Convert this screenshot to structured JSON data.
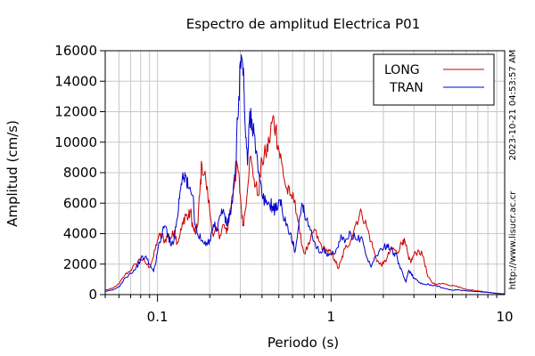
{
  "chart_data": {
    "type": "line",
    "title": "Espectro de amplitud Electrica P01",
    "xlabel": "Periodo (s)",
    "ylabel": "Amplitud (cm/s)",
    "x_scale": "log",
    "xlim": [
      0.05,
      10
    ],
    "ylim": [
      0,
      16000
    ],
    "x_ticks": [
      {
        "value": 0.1,
        "label": "0.1"
      },
      {
        "value": 1,
        "label": "1"
      },
      {
        "value": 10,
        "label": "10"
      }
    ],
    "y_ticks": [
      {
        "value": 0,
        "label": "0"
      },
      {
        "value": 2000,
        "label": "2000"
      },
      {
        "value": 4000,
        "label": "4000"
      },
      {
        "value": 6000,
        "label": "6000"
      },
      {
        "value": 8000,
        "label": "8000"
      },
      {
        "value": 10000,
        "label": "10000"
      },
      {
        "value": 12000,
        "label": "12000"
      },
      {
        "value": 14000,
        "label": "14000"
      },
      {
        "value": 16000,
        "label": "16000"
      }
    ],
    "grid": true,
    "legend_position": "top-right",
    "series": [
      {
        "name": "LONG",
        "color": "#cc0000",
        "points": [
          [
            0.05,
            300
          ],
          [
            0.055,
            400
          ],
          [
            0.06,
            700
          ],
          [
            0.065,
            1300
          ],
          [
            0.07,
            1600
          ],
          [
            0.075,
            2000
          ],
          [
            0.08,
            2400
          ],
          [
            0.085,
            2100
          ],
          [
            0.09,
            1800
          ],
          [
            0.095,
            2500
          ],
          [
            0.1,
            3600
          ],
          [
            0.105,
            4000
          ],
          [
            0.11,
            3500
          ],
          [
            0.115,
            3900
          ],
          [
            0.12,
            3700
          ],
          [
            0.125,
            4200
          ],
          [
            0.13,
            3400
          ],
          [
            0.135,
            4000
          ],
          [
            0.14,
            4600
          ],
          [
            0.145,
            5300
          ],
          [
            0.15,
            5000
          ],
          [
            0.155,
            5500
          ],
          [
            0.16,
            4400
          ],
          [
            0.165,
            4000
          ],
          [
            0.17,
            4500
          ],
          [
            0.175,
            6500
          ],
          [
            0.18,
            8600
          ],
          [
            0.19,
            7500
          ],
          [
            0.2,
            5500
          ],
          [
            0.21,
            3800
          ],
          [
            0.22,
            4200
          ],
          [
            0.23,
            3900
          ],
          [
            0.24,
            4600
          ],
          [
            0.25,
            4000
          ],
          [
            0.26,
            5200
          ],
          [
            0.27,
            6500
          ],
          [
            0.28,
            7800
          ],
          [
            0.29,
            8400
          ],
          [
            0.3,
            6500
          ],
          [
            0.31,
            4500
          ],
          [
            0.32,
            5500
          ],
          [
            0.34,
            9000
          ],
          [
            0.36,
            7600
          ],
          [
            0.38,
            6500
          ],
          [
            0.4,
            8800
          ],
          [
            0.42,
            9200
          ],
          [
            0.44,
            10000
          ],
          [
            0.46,
            11500
          ],
          [
            0.48,
            11000
          ],
          [
            0.5,
            9500
          ],
          [
            0.52,
            8600
          ],
          [
            0.55,
            7000
          ],
          [
            0.58,
            6500
          ],
          [
            0.62,
            6200
          ],
          [
            0.66,
            4000
          ],
          [
            0.7,
            2700
          ],
          [
            0.75,
            3300
          ],
          [
            0.8,
            4300
          ],
          [
            0.85,
            3500
          ],
          [
            0.9,
            3000
          ],
          [
            0.95,
            2900
          ],
          [
            1.0,
            2700
          ],
          [
            1.05,
            2300
          ],
          [
            1.1,
            1700
          ],
          [
            1.15,
            2300
          ],
          [
            1.2,
            3000
          ],
          [
            1.3,
            3600
          ],
          [
            1.4,
            4800
          ],
          [
            1.5,
            5400
          ],
          [
            1.6,
            4500
          ],
          [
            1.7,
            3500
          ],
          [
            1.8,
            2500
          ],
          [
            1.9,
            2000
          ],
          [
            2.0,
            2000
          ],
          [
            2.1,
            2400
          ],
          [
            2.2,
            2900
          ],
          [
            2.3,
            3000
          ],
          [
            2.4,
            2700
          ],
          [
            2.5,
            3200
          ],
          [
            2.6,
            3600
          ],
          [
            2.7,
            3200
          ],
          [
            2.8,
            2300
          ],
          [
            2.9,
            2200
          ],
          [
            3.0,
            2600
          ],
          [
            3.2,
            2900
          ],
          [
            3.4,
            2500
          ],
          [
            3.6,
            1200
          ],
          [
            3.8,
            800
          ],
          [
            4.0,
            700
          ],
          [
            4.5,
            700
          ],
          [
            5.0,
            600
          ],
          [
            5.5,
            500
          ],
          [
            6.0,
            350
          ],
          [
            7.0,
            250
          ],
          [
            8.0,
            150
          ],
          [
            9.0,
            80
          ],
          [
            10.0,
            40
          ]
        ]
      },
      {
        "name": "TRAN",
        "color": "#0000cc",
        "points": [
          [
            0.05,
            200
          ],
          [
            0.055,
            300
          ],
          [
            0.06,
            500
          ],
          [
            0.065,
            1100
          ],
          [
            0.07,
            1400
          ],
          [
            0.075,
            1700
          ],
          [
            0.08,
            2300
          ],
          [
            0.085,
            2500
          ],
          [
            0.09,
            2000
          ],
          [
            0.095,
            1500
          ],
          [
            0.1,
            2800
          ],
          [
            0.105,
            3800
          ],
          [
            0.11,
            4500
          ],
          [
            0.115,
            4000
          ],
          [
            0.12,
            3200
          ],
          [
            0.125,
            3800
          ],
          [
            0.13,
            5000
          ],
          [
            0.135,
            6800
          ],
          [
            0.14,
            8000
          ],
          [
            0.145,
            7800
          ],
          [
            0.15,
            7000
          ],
          [
            0.16,
            6500
          ],
          [
            0.165,
            4500
          ],
          [
            0.17,
            4000
          ],
          [
            0.18,
            3500
          ],
          [
            0.19,
            3200
          ],
          [
            0.2,
            3600
          ],
          [
            0.21,
            4600
          ],
          [
            0.22,
            4300
          ],
          [
            0.23,
            5200
          ],
          [
            0.24,
            5600
          ],
          [
            0.25,
            4500
          ],
          [
            0.26,
            5200
          ],
          [
            0.27,
            6000
          ],
          [
            0.28,
            7800
          ],
          [
            0.29,
            11500
          ],
          [
            0.3,
            15300
          ],
          [
            0.31,
            15000
          ],
          [
            0.315,
            13500
          ],
          [
            0.32,
            11000
          ],
          [
            0.33,
            8500
          ],
          [
            0.34,
            12000
          ],
          [
            0.35,
            11500
          ],
          [
            0.36,
            10600
          ],
          [
            0.38,
            8000
          ],
          [
            0.4,
            6500
          ],
          [
            0.42,
            6000
          ],
          [
            0.44,
            6000
          ],
          [
            0.46,
            5800
          ],
          [
            0.48,
            5500
          ],
          [
            0.5,
            6200
          ],
          [
            0.52,
            5800
          ],
          [
            0.55,
            4500
          ],
          [
            0.58,
            4000
          ],
          [
            0.6,
            3500
          ],
          [
            0.62,
            2800
          ],
          [
            0.65,
            4500
          ],
          [
            0.68,
            6000
          ],
          [
            0.7,
            5500
          ],
          [
            0.75,
            4500
          ],
          [
            0.8,
            3500
          ],
          [
            0.85,
            2800
          ],
          [
            0.9,
            3000
          ],
          [
            0.95,
            2500
          ],
          [
            1.0,
            2600
          ],
          [
            1.05,
            2700
          ],
          [
            1.1,
            3100
          ],
          [
            1.15,
            3800
          ],
          [
            1.2,
            3400
          ],
          [
            1.3,
            4000
          ],
          [
            1.4,
            3600
          ],
          [
            1.5,
            3800
          ],
          [
            1.6,
            2500
          ],
          [
            1.7,
            1800
          ],
          [
            1.8,
            2500
          ],
          [
            1.9,
            2900
          ],
          [
            2.0,
            3000
          ],
          [
            2.1,
            3300
          ],
          [
            2.2,
            3000
          ],
          [
            2.3,
            2700
          ],
          [
            2.4,
            2500
          ],
          [
            2.5,
            1700
          ],
          [
            2.6,
            1300
          ],
          [
            2.7,
            800
          ],
          [
            2.8,
            1600
          ],
          [
            2.9,
            1400
          ],
          [
            3.0,
            1100
          ],
          [
            3.2,
            800
          ],
          [
            3.4,
            700
          ],
          [
            3.6,
            700
          ],
          [
            3.8,
            600
          ],
          [
            4.0,
            600
          ],
          [
            4.5,
            400
          ],
          [
            5.0,
            300
          ],
          [
            5.5,
            300
          ],
          [
            6.0,
            250
          ],
          [
            7.0,
            200
          ],
          [
            8.0,
            150
          ],
          [
            9.0,
            80
          ],
          [
            10.0,
            40
          ]
        ]
      }
    ]
  },
  "side_labels": {
    "timestamp": "2023-10-21 04:53:57 AM",
    "website": "http://www.lisucr.ac.cr"
  }
}
